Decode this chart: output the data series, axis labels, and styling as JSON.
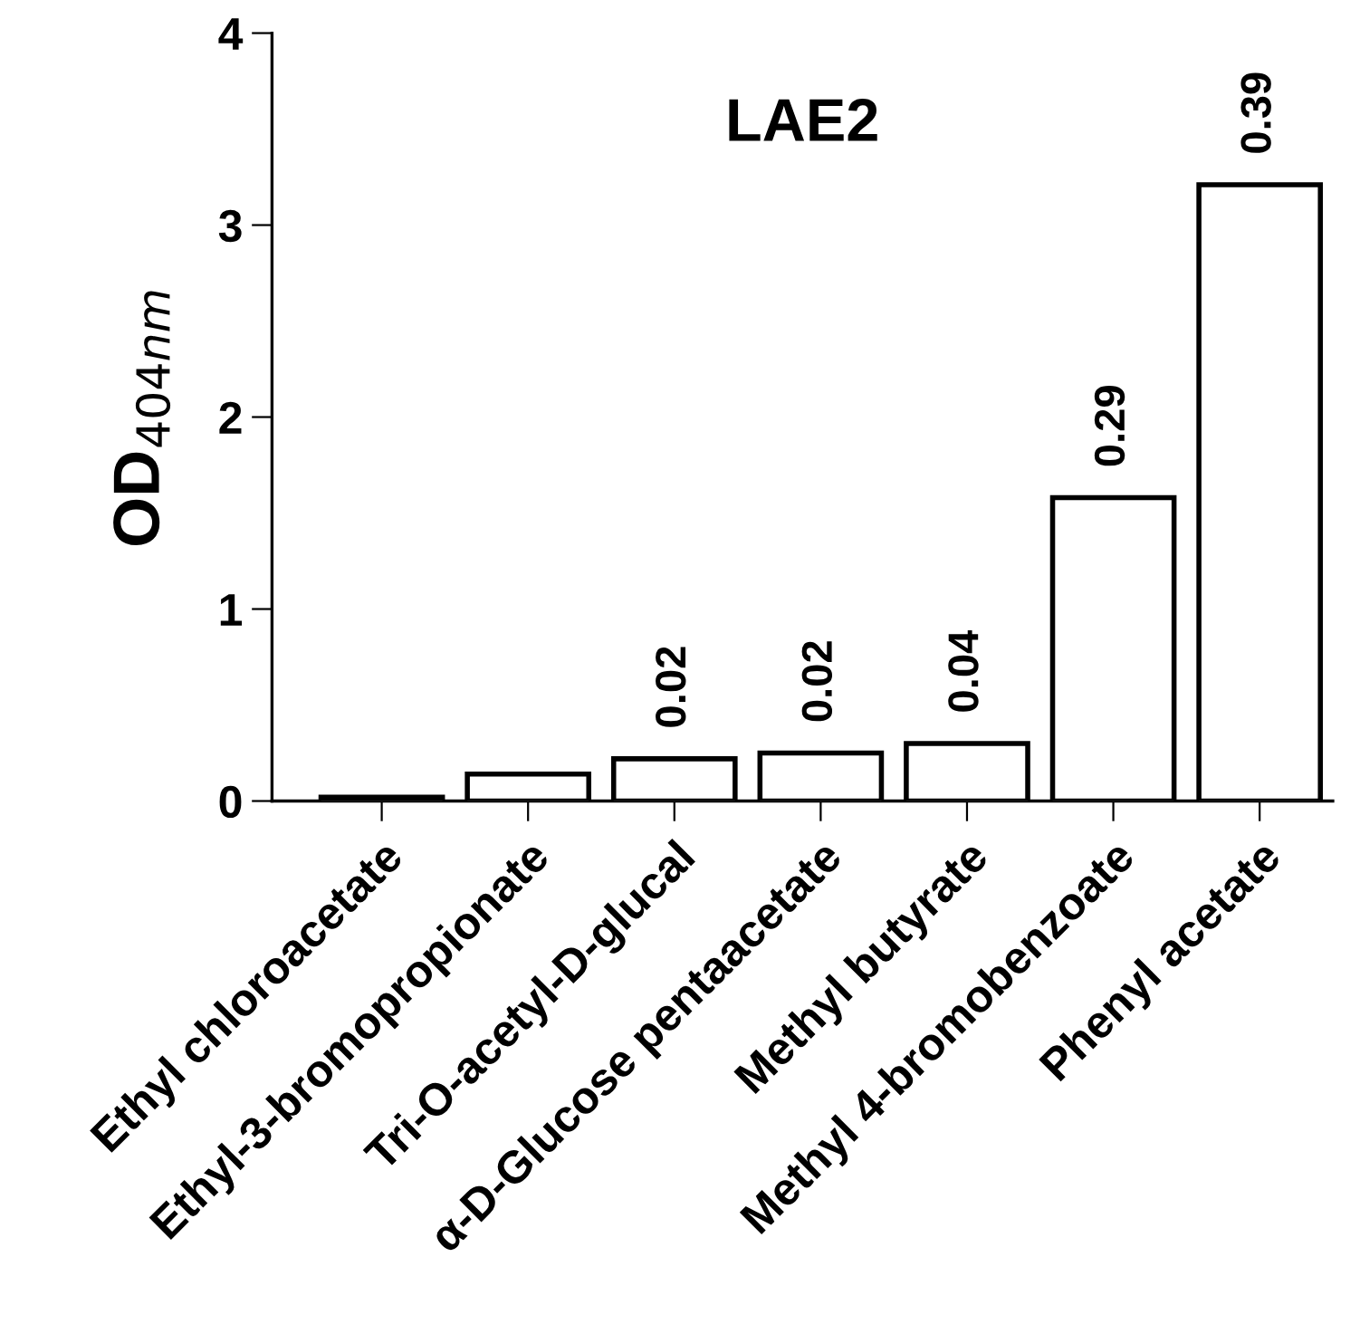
{
  "chart_data": {
    "type": "bar",
    "title": "LAE2",
    "ylabel": "OD$_{404nm}$",
    "categories": [
      "Ethyl chloroacetate",
      "Ethyl-3-bromopropionate",
      "Tri-O-acetyl-D-glucal",
      "α-D-Glucose pentaacetate",
      "Methyl butyrate",
      "Methyl 4-bromobenzoate",
      "Phenyl acetate"
    ],
    "values": [
      0.02,
      0.14,
      0.22,
      0.25,
      0.3,
      1.58,
      3.21
    ],
    "color": "#ffffff",
    "ylim": [
      0,
      4
    ],
    "yticks": [
      0,
      1,
      2,
      3,
      4
    ],
    "grid": false,
    "annotations": [
      {
        "text": "0.02",
        "x": "Tri-O-acetyl-D-glucal",
        "y": 0.22
      },
      {
        "text": "0.02",
        "x": "α-D-Glucose pentaacetate",
        "y": 0.25
      },
      {
        "text": "0.04",
        "x": "Methyl butyrate",
        "y": 0.3
      },
      {
        "text": "0.29",
        "x": "Methyl 4-bromobenzoate",
        "y": 1.58
      },
      {
        "text": "0.39",
        "x": "Phenyl acetate",
        "y": 3.21
      }
    ]
  }
}
